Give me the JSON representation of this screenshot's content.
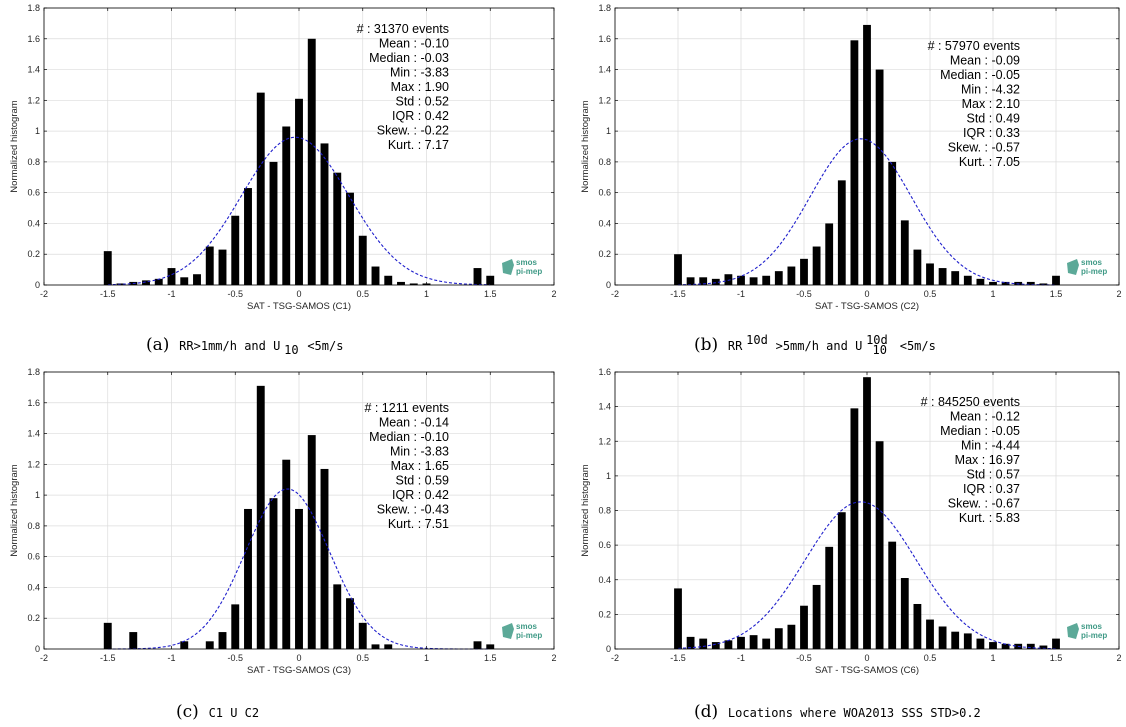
{
  "figure": {
    "caption_prefix_a": "(a)",
    "caption_prefix_b": "(b)",
    "caption_prefix_c": "(c)",
    "caption_prefix_d": "(d)",
    "caption_a": "RR>1mm/h and U",
    "caption_a_sub": "10",
    "caption_a_tail": "<5m/s",
    "caption_b": "RR",
    "caption_b_sup": "10d",
    "caption_b_mid": ">5mm/h and U",
    "caption_b_sub": "10",
    "caption_b_sup2": "10d",
    "caption_b_tail": "<5m/s",
    "caption_c": "C1 U C2",
    "caption_d": "Locations where WOA2013 SSS STD>0.2",
    "logo_line1": "smos",
    "logo_line2": "pi-mep",
    "colors": {
      "bars": "#000000",
      "fit": "#1f1fcc",
      "logo": "#3f9a86",
      "grid": "#dcdcdc"
    }
  },
  "chart_data": [
    {
      "type": "bar",
      "panel": "a",
      "xlabel": "SAT - TSG-SAMOS (C1)",
      "ylabel": "Normalized histogram",
      "xlim": [
        -2,
        2
      ],
      "ylim": [
        0,
        1.8
      ],
      "xticks": [
        -2,
        -1.5,
        -1,
        -0.5,
        0,
        0.5,
        1,
        1.5,
        2
      ],
      "yticks": [
        0,
        0.2,
        0.4,
        0.6,
        0.8,
        1,
        1.2,
        1.4,
        1.6,
        1.8
      ],
      "grid": true,
      "bin_width": 0.1,
      "x": [
        -1.5,
        -1.4,
        -1.3,
        -1.2,
        -1.1,
        -1.0,
        -0.9,
        -0.8,
        -0.7,
        -0.6,
        -0.5,
        -0.4,
        -0.3,
        -0.2,
        -0.1,
        0.0,
        0.1,
        0.2,
        0.3,
        0.4,
        0.5,
        0.6,
        0.7,
        0.8,
        0.9,
        1.0,
        1.1,
        1.2,
        1.3,
        1.4,
        1.5
      ],
      "values": [
        0.22,
        0.01,
        0.02,
        0.03,
        0.04,
        0.11,
        0.05,
        0.07,
        0.25,
        0.23,
        0.45,
        0.63,
        1.25,
        0.8,
        1.03,
        1.21,
        1.6,
        0.92,
        0.73,
        0.6,
        0.32,
        0.12,
        0.06,
        0.02,
        0.01,
        0.01,
        0.0,
        0.0,
        0.0,
        0.11,
        0.06
      ],
      "fit": {
        "curve": "gaussian",
        "style": "dashed",
        "peak": 0.96,
        "mean": -0.03,
        "std": 0.42
      },
      "stats": [
        "# : 31370 events",
        "Mean : -0.10",
        "Median : -0.03",
        "Min : -3.83",
        "Max : 1.90",
        "Std : 0.52",
        "IQR : 0.42",
        "Skew. : -0.22",
        "Kurt. : 7.17"
      ]
    },
    {
      "type": "bar",
      "panel": "b",
      "xlabel": "SAT - TSG-SAMOS (C2)",
      "ylabel": "Normalized histogram",
      "xlim": [
        -2,
        2
      ],
      "ylim": [
        0,
        1.8
      ],
      "xticks": [
        -2,
        -1.5,
        -1,
        -0.5,
        0,
        0.5,
        1,
        1.5,
        2
      ],
      "yticks": [
        0,
        0.2,
        0.4,
        0.6,
        0.8,
        1,
        1.2,
        1.4,
        1.6,
        1.8
      ],
      "grid": true,
      "bin_width": 0.1,
      "x": [
        -1.5,
        -1.4,
        -1.3,
        -1.2,
        -1.1,
        -1.0,
        -0.9,
        -0.8,
        -0.7,
        -0.6,
        -0.5,
        -0.4,
        -0.3,
        -0.2,
        -0.1,
        0.0,
        0.1,
        0.2,
        0.3,
        0.4,
        0.5,
        0.6,
        0.7,
        0.8,
        0.9,
        1.0,
        1.1,
        1.2,
        1.3,
        1.4,
        1.5
      ],
      "values": [
        0.2,
        0.05,
        0.05,
        0.04,
        0.07,
        0.06,
        0.05,
        0.06,
        0.09,
        0.12,
        0.17,
        0.25,
        0.4,
        0.68,
        1.59,
        1.69,
        1.4,
        0.8,
        0.42,
        0.23,
        0.14,
        0.11,
        0.09,
        0.06,
        0.04,
        0.02,
        0.02,
        0.02,
        0.02,
        0.01,
        0.06
      ],
      "fit": {
        "curve": "gaussian",
        "style": "dashed",
        "peak": 0.95,
        "mean": -0.05,
        "std": 0.4
      },
      "stats": [
        "# : 57970 events",
        "Mean : -0.09",
        "Median : -0.05",
        "Min : -4.32",
        "Max : 2.10",
        "Std : 0.49",
        "IQR : 0.33",
        "Skew. : -0.57",
        "Kurt. : 7.05"
      ]
    },
    {
      "type": "bar",
      "panel": "c",
      "xlabel": "SAT - TSG-SAMOS (C3)",
      "ylabel": "Normalized histogram",
      "xlim": [
        -2,
        2
      ],
      "ylim": [
        0,
        1.8
      ],
      "xticks": [
        -2,
        -1.5,
        -1,
        -0.5,
        0,
        0.5,
        1,
        1.5,
        2
      ],
      "yticks": [
        0,
        0.2,
        0.4,
        0.6,
        0.8,
        1,
        1.2,
        1.4,
        1.6,
        1.8
      ],
      "grid": true,
      "bin_width": 0.1,
      "x": [
        -1.5,
        -1.4,
        -1.3,
        -1.2,
        -1.1,
        -1.0,
        -0.9,
        -0.8,
        -0.7,
        -0.6,
        -0.5,
        -0.4,
        -0.3,
        -0.2,
        -0.1,
        0.0,
        0.1,
        0.2,
        0.3,
        0.4,
        0.5,
        0.6,
        0.7,
        0.8,
        0.9,
        1.0,
        1.1,
        1.2,
        1.3,
        1.4,
        1.5
      ],
      "values": [
        0.17,
        0.0,
        0.11,
        0.0,
        0.0,
        0.0,
        0.05,
        0.0,
        0.05,
        0.11,
        0.29,
        0.91,
        1.71,
        0.98,
        1.23,
        0.91,
        1.39,
        1.17,
        0.42,
        0.33,
        0.17,
        0.03,
        0.03,
        0.0,
        0.0,
        0.0,
        0.0,
        0.0,
        0.0,
        0.05,
        0.03
      ],
      "fit": {
        "curve": "gaussian",
        "style": "dashed",
        "peak": 1.04,
        "mean": -0.09,
        "std": 0.33
      },
      "stats": [
        "# : 1211 events",
        "Mean : -0.14",
        "Median : -0.10",
        "Min : -3.83",
        "Max : 1.65",
        "Std : 0.59",
        "IQR : 0.42",
        "Skew. : -0.43",
        "Kurt. : 7.51"
      ]
    },
    {
      "type": "bar",
      "panel": "d",
      "xlabel": "SAT - TSG-SAMOS (C6)",
      "ylabel": "Normalized histogram",
      "xlim": [
        -2,
        2
      ],
      "ylim": [
        0,
        1.6
      ],
      "xticks": [
        -2,
        -1.5,
        -1,
        -0.5,
        0,
        0.5,
        1,
        1.5,
        2
      ],
      "yticks": [
        0,
        0.2,
        0.4,
        0.6,
        0.8,
        1,
        1.2,
        1.4,
        1.6
      ],
      "grid": true,
      "bin_width": 0.1,
      "x": [
        -1.5,
        -1.4,
        -1.3,
        -1.2,
        -1.1,
        -1.0,
        -0.9,
        -0.8,
        -0.7,
        -0.6,
        -0.5,
        -0.4,
        -0.3,
        -0.2,
        -0.1,
        0.0,
        0.1,
        0.2,
        0.3,
        0.4,
        0.5,
        0.6,
        0.7,
        0.8,
        0.9,
        1.0,
        1.1,
        1.2,
        1.3,
        1.4,
        1.5
      ],
      "values": [
        0.35,
        0.07,
        0.06,
        0.04,
        0.05,
        0.07,
        0.08,
        0.06,
        0.12,
        0.14,
        0.25,
        0.37,
        0.59,
        0.79,
        1.39,
        1.57,
        1.2,
        0.62,
        0.41,
        0.26,
        0.17,
        0.13,
        0.1,
        0.09,
        0.06,
        0.04,
        0.03,
        0.03,
        0.03,
        0.02,
        0.06
      ],
      "fit": {
        "curve": "gaussian",
        "style": "dashed",
        "peak": 0.85,
        "mean": -0.05,
        "std": 0.44
      },
      "stats": [
        "# : 845250 events",
        "Mean : -0.12",
        "Median : -0.05",
        "Min : -4.44",
        "Max : 16.97",
        "Std : 0.57",
        "IQR : 0.37",
        "Skew. : -0.67",
        "Kurt. : 5.83"
      ]
    }
  ]
}
